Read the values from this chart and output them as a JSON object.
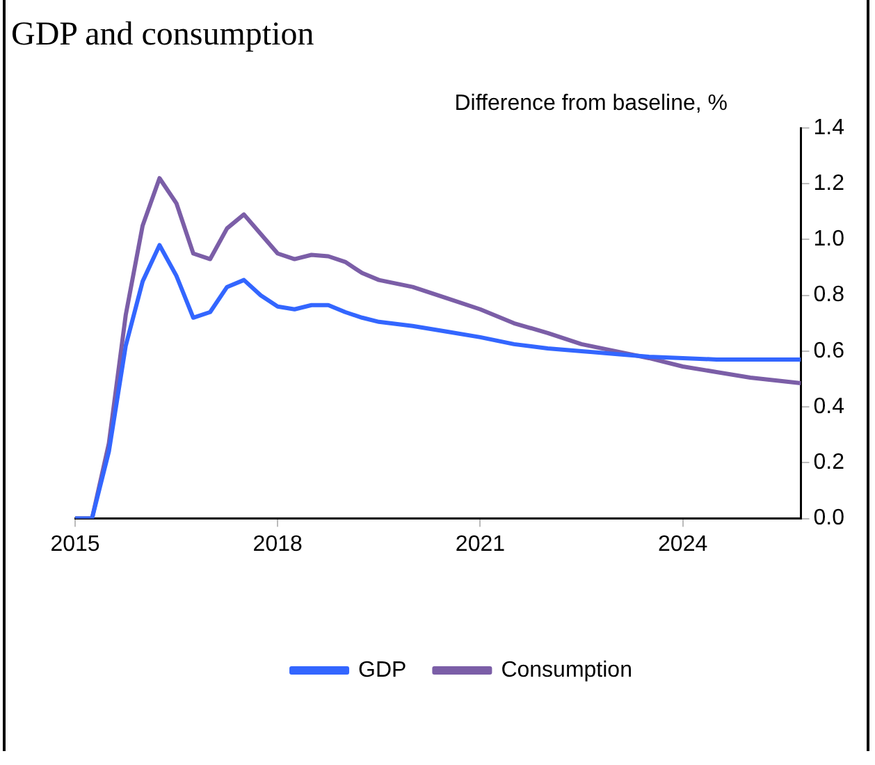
{
  "chart_data": {
    "type": "line",
    "title": "GDP and consumption",
    "ylabel": "Difference from baseline, %",
    "x": [
      2015,
      2015.25,
      2015.5,
      2015.75,
      2016,
      2016.25,
      2016.5,
      2016.75,
      2017,
      2017.25,
      2017.5,
      2017.75,
      2018,
      2018.25,
      2018.5,
      2018.75,
      2019,
      2019.25,
      2019.5,
      2020,
      2020.5,
      2021,
      2021.5,
      2022,
      2022.5,
      2023,
      2023.5,
      2024,
      2024.5,
      2025,
      2025.75
    ],
    "series": [
      {
        "name": "GDP",
        "color": "#3366ff",
        "values": [
          0,
          0,
          0.24,
          0.62,
          0.85,
          0.98,
          0.87,
          0.72,
          0.74,
          0.83,
          0.855,
          0.8,
          0.76,
          0.75,
          0.765,
          0.765,
          0.74,
          0.72,
          0.705,
          0.69,
          0.67,
          0.65,
          0.625,
          0.61,
          0.6,
          0.59,
          0.58,
          0.575,
          0.57,
          0.57,
          0.57
        ]
      },
      {
        "name": "Consumption",
        "color": "#7b5ea7",
        "values": [
          0,
          0,
          0.27,
          0.73,
          1.05,
          1.22,
          1.13,
          0.95,
          0.93,
          1.04,
          1.09,
          1.02,
          0.95,
          0.93,
          0.945,
          0.94,
          0.92,
          0.88,
          0.855,
          0.83,
          0.79,
          0.75,
          0.7,
          0.665,
          0.625,
          0.6,
          0.575,
          0.545,
          0.525,
          0.505,
          0.485
        ]
      }
    ],
    "xlim": [
      2015,
      2025.75
    ],
    "xticks": [
      2015,
      2018,
      2021,
      2024
    ],
    "ylim": [
      0,
      1.4
    ],
    "yticks": [
      {
        "value": 0,
        "label": "0.0"
      },
      0.2,
      0.4,
      0.6,
      0.8,
      {
        "value": 1,
        "label": "1.0"
      },
      1.2,
      1.4
    ],
    "grid": false,
    "legend": "bottom",
    "marker": "none",
    "line_style": "solid"
  }
}
